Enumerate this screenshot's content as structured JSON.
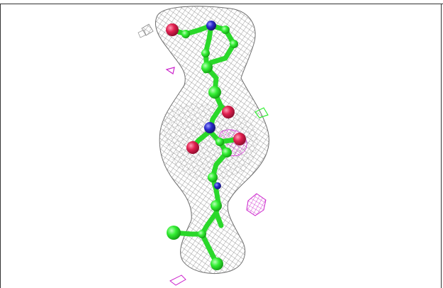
{
  "viewer": {
    "scene": "electron-density-mesh-with-ball-and-stick-model",
    "colors": {
      "background": "#ffffff",
      "mesh": "#7a7a7a",
      "carbon": "#33ee33",
      "oxygen": "#e0204f",
      "nitrogen": "#2a2acc",
      "difference_density": "#cc22cc"
    }
  }
}
